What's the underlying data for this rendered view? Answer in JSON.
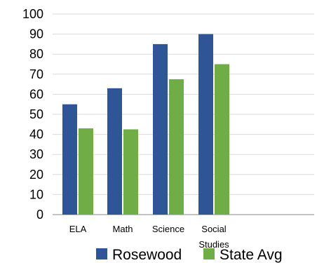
{
  "chart_data": {
    "type": "bar",
    "categories": [
      "ELA",
      "Math",
      "Science",
      "Social Studies"
    ],
    "category_lines": [
      [
        "ELA"
      ],
      [
        "Math"
      ],
      [
        "Science"
      ],
      [
        "Social",
        "Studies"
      ]
    ],
    "series": [
      {
        "name": "Rosewood",
        "values": [
          55,
          63,
          85,
          90
        ],
        "color": "#2f5597"
      },
      {
        "name": "State Avg",
        "values": [
          43,
          42.5,
          67.5,
          75
        ],
        "color": "#70ad47"
      }
    ],
    "title": "",
    "xlabel": "",
    "ylabel": "",
    "ylim": [
      0,
      100
    ],
    "yticks": [
      "0",
      "10",
      "20",
      "30",
      "40",
      "50",
      "60",
      "70",
      "80",
      "90",
      "100"
    ],
    "grid": true,
    "legend_position": "bottom"
  }
}
